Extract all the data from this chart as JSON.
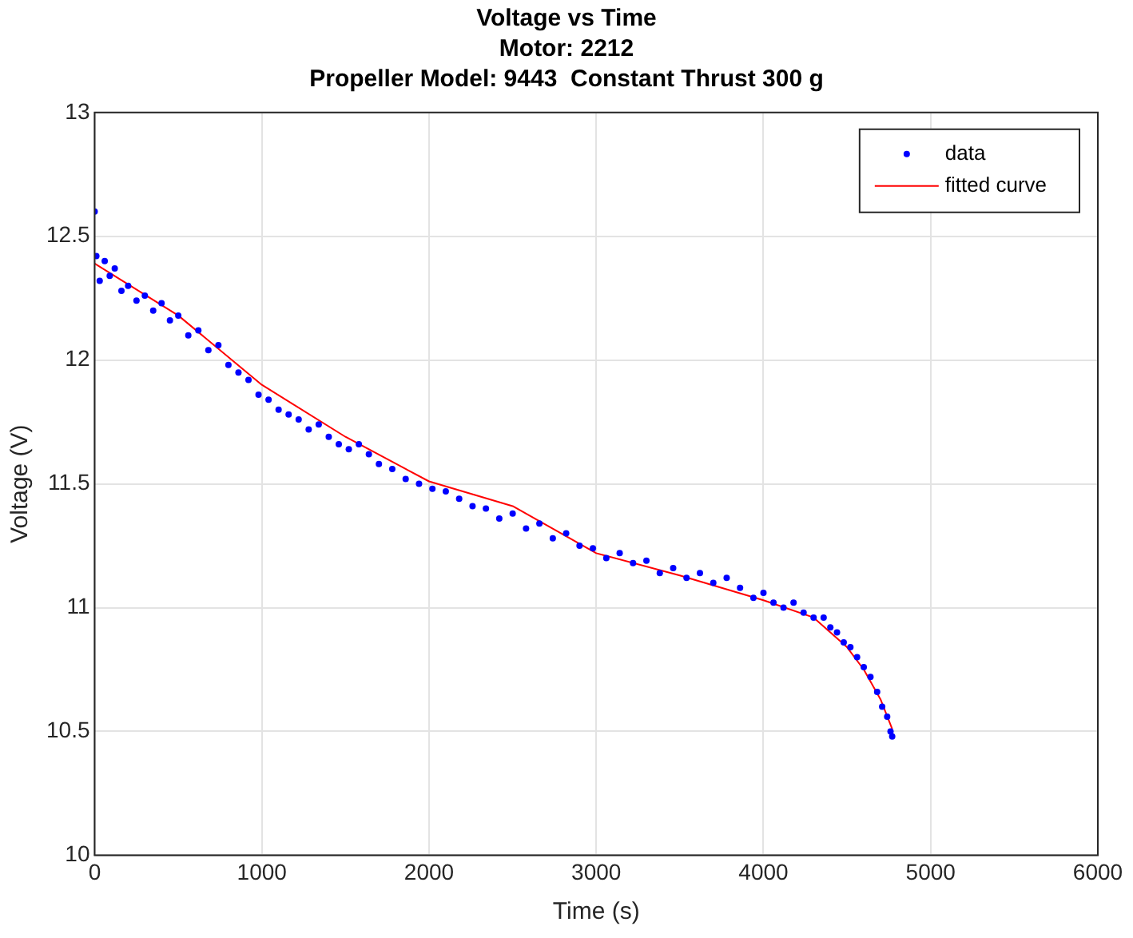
{
  "chart_data": {
    "type": "scatter",
    "title": "Voltage vs Time",
    "subtitle": "Motor: 2212\nPropeller Model: 9443  Constant Thrust 300 g",
    "xlabel": "Time (s)",
    "ylabel": "Voltage (V)",
    "xlim": [
      0,
      6000
    ],
    "ylim": [
      10,
      13
    ],
    "xticks": [
      0,
      1000,
      2000,
      3000,
      4000,
      5000,
      6000
    ],
    "yticks": [
      10,
      10.5,
      11,
      11.5,
      12,
      12.5,
      13
    ],
    "grid": true,
    "legend": "top right",
    "series": [
      {
        "name": "data",
        "marker": "circle",
        "color": "#0000ff",
        "x": [
          0,
          10,
          30,
          60,
          90,
          120,
          160,
          200,
          250,
          300,
          350,
          400,
          450,
          500,
          560,
          620,
          680,
          740,
          800,
          860,
          920,
          980,
          1040,
          1100,
          1160,
          1220,
          1280,
          1340,
          1400,
          1460,
          1520,
          1580,
          1640,
          1700,
          1780,
          1860,
          1940,
          2020,
          2100,
          2180,
          2260,
          2340,
          2420,
          2500,
          2580,
          2660,
          2740,
          2820,
          2900,
          2980,
          3060,
          3140,
          3220,
          3300,
          3380,
          3460,
          3540,
          3620,
          3700,
          3780,
          3860,
          3940,
          4000,
          4060,
          4120,
          4180,
          4240,
          4300,
          4360,
          4400,
          4440,
          4480,
          4520,
          4560,
          4600,
          4640,
          4680,
          4710,
          4740,
          4760,
          4770
        ],
        "values": [
          12.6,
          12.42,
          12.32,
          12.4,
          12.34,
          12.37,
          12.28,
          12.3,
          12.24,
          12.26,
          12.2,
          12.23,
          12.16,
          12.18,
          12.1,
          12.12,
          12.04,
          12.06,
          11.98,
          11.95,
          11.92,
          11.86,
          11.84,
          11.8,
          11.78,
          11.76,
          11.72,
          11.74,
          11.69,
          11.66,
          11.64,
          11.66,
          11.62,
          11.58,
          11.56,
          11.52,
          11.5,
          11.48,
          11.47,
          11.44,
          11.41,
          11.4,
          11.36,
          11.38,
          11.32,
          11.34,
          11.28,
          11.3,
          11.25,
          11.24,
          11.2,
          11.22,
          11.18,
          11.19,
          11.14,
          11.16,
          11.12,
          11.14,
          11.1,
          11.12,
          11.08,
          11.04,
          11.06,
          11.02,
          11.0,
          11.02,
          10.98,
          10.96,
          10.96,
          10.92,
          10.9,
          10.86,
          10.84,
          10.8,
          10.76,
          10.72,
          10.66,
          10.6,
          10.56,
          10.5,
          10.48
        ]
      },
      {
        "name": "fitted curve",
        "type": "line",
        "marker": "none",
        "line_style": "solid",
        "color": "#ff0000",
        "x": [
          0,
          500,
          1000,
          1500,
          2000,
          2500,
          3000,
          3500,
          4000,
          4300,
          4500,
          4600,
          4700,
          4770
        ],
        "values": [
          12.39,
          12.18,
          11.9,
          11.69,
          11.51,
          11.41,
          11.22,
          11.13,
          11.03,
          10.96,
          10.84,
          10.75,
          10.63,
          10.51
        ]
      }
    ]
  }
}
